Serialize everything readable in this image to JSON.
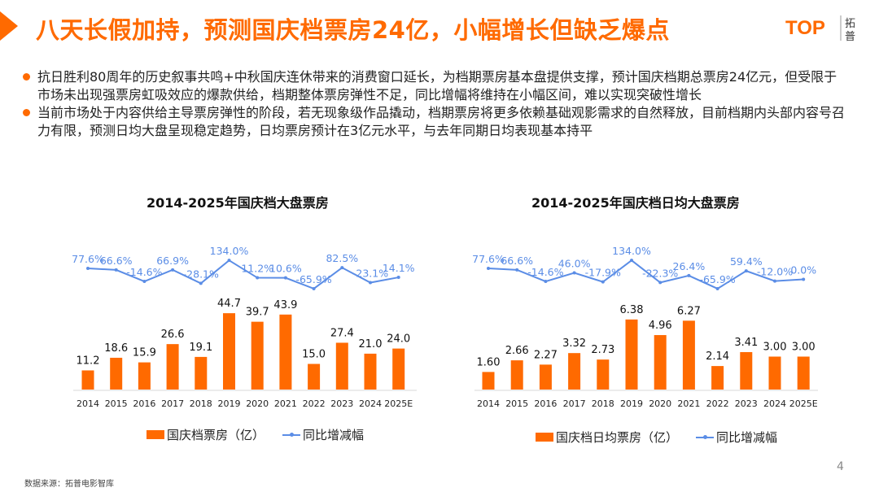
{
  "header": {
    "title": "八天长假加持，预测国庆档票房24亿，小幅增长但缺乏爆点",
    "logo_text": "TOP",
    "logo_cn": "拓普"
  },
  "bullets": [
    "抗日胜利80周年的历史叙事共鸣+中秋国庆连休带来的消费窗口延长，为档期票房基本盘提供支撑，预计国庆档期总票房24亿元，但受限于市场未出现强票房虹吸效应的爆款供给，档期整体票房弹性不足，同比增幅将维持在小幅区间，难以实现突破性增长",
    "当前市场处于内容供给主导票房弹性的阶段，若无现象级作品撬动，档期票房将更多依赖基础观影需求的自然释放，目前档期内头部内容号召力有限，预测日均大盘呈现稳定趋势，日均票房预计在3亿元水平，与去年同期日均表现基本持平"
  ],
  "colors": {
    "accent": "#FF6A00",
    "bar": "#FF6A00",
    "line": "#5B8DE6"
  },
  "chart_data": [
    {
      "type": "bar+line",
      "title": "2014-2025年国庆档大盘票房",
      "categories": [
        "2014",
        "2015",
        "2016",
        "2017",
        "2018",
        "2019",
        "2020",
        "2021",
        "2022",
        "2023",
        "2024",
        "2025E"
      ],
      "series": [
        {
          "name": "国庆档票房（亿）",
          "type": "bar",
          "values": [
            11.2,
            18.6,
            15.9,
            26.6,
            19.1,
            44.7,
            39.7,
            43.9,
            15.0,
            27.4,
            21.0,
            24.0
          ],
          "labels": [
            "11.2",
            "18.6",
            "15.9",
            "26.6",
            "19.1",
            "44.7",
            "39.7",
            "43.9",
            "15.0",
            "27.4",
            "21.0",
            "24.0"
          ]
        },
        {
          "name": "同比增减幅",
          "type": "line",
          "values": [
            77.6,
            66.6,
            -14.6,
            66.9,
            -28.1,
            134.0,
            11.2,
            10.6,
            -65.9,
            82.5,
            -23.1,
            14.1
          ],
          "labels": [
            "77.6%",
            "66.6%",
            "-14.6%",
            "66.9%",
            "-28.1%",
            "134.0%",
            "11.2%",
            "10.6%",
            "-65.9%",
            "82.5%",
            "-23.1%",
            "14.1%"
          ]
        }
      ],
      "legend": "bottom"
    },
    {
      "type": "bar+line",
      "title": "2014-2025年国庆档日均大盘票房",
      "categories": [
        "2014",
        "2015",
        "2016",
        "2017",
        "2018",
        "2019",
        "2020",
        "2021",
        "2022",
        "2023",
        "2024",
        "2025E"
      ],
      "series": [
        {
          "name": "国庆档日均票房（亿）",
          "type": "bar",
          "values": [
            1.6,
            2.66,
            2.27,
            3.32,
            2.73,
            6.38,
            4.96,
            6.27,
            2.14,
            3.41,
            3.0,
            3.0
          ],
          "labels": [
            "1.60",
            "2.66",
            "2.27",
            "3.32",
            "2.73",
            "6.38",
            "4.96",
            "6.27",
            "2.14",
            "3.41",
            "3.00",
            "3.00"
          ]
        },
        {
          "name": "同比增减幅",
          "type": "line",
          "values": [
            77.6,
            66.6,
            -14.6,
            46.0,
            -17.9,
            134.0,
            -22.3,
            26.4,
            -65.9,
            59.4,
            -12.0,
            0.0
          ],
          "labels": [
            "77.6%",
            "66.6%",
            "-14.6%",
            "46.0%",
            "-17.9%",
            "134.0%",
            "-22.3%",
            "26.4%",
            "-65.9%",
            "59.4%",
            "-12.0%",
            "0.0%"
          ]
        }
      ],
      "legend": "bottom"
    }
  ],
  "footer": {
    "source": "数据来源：拓普电影智库",
    "page": "4"
  }
}
